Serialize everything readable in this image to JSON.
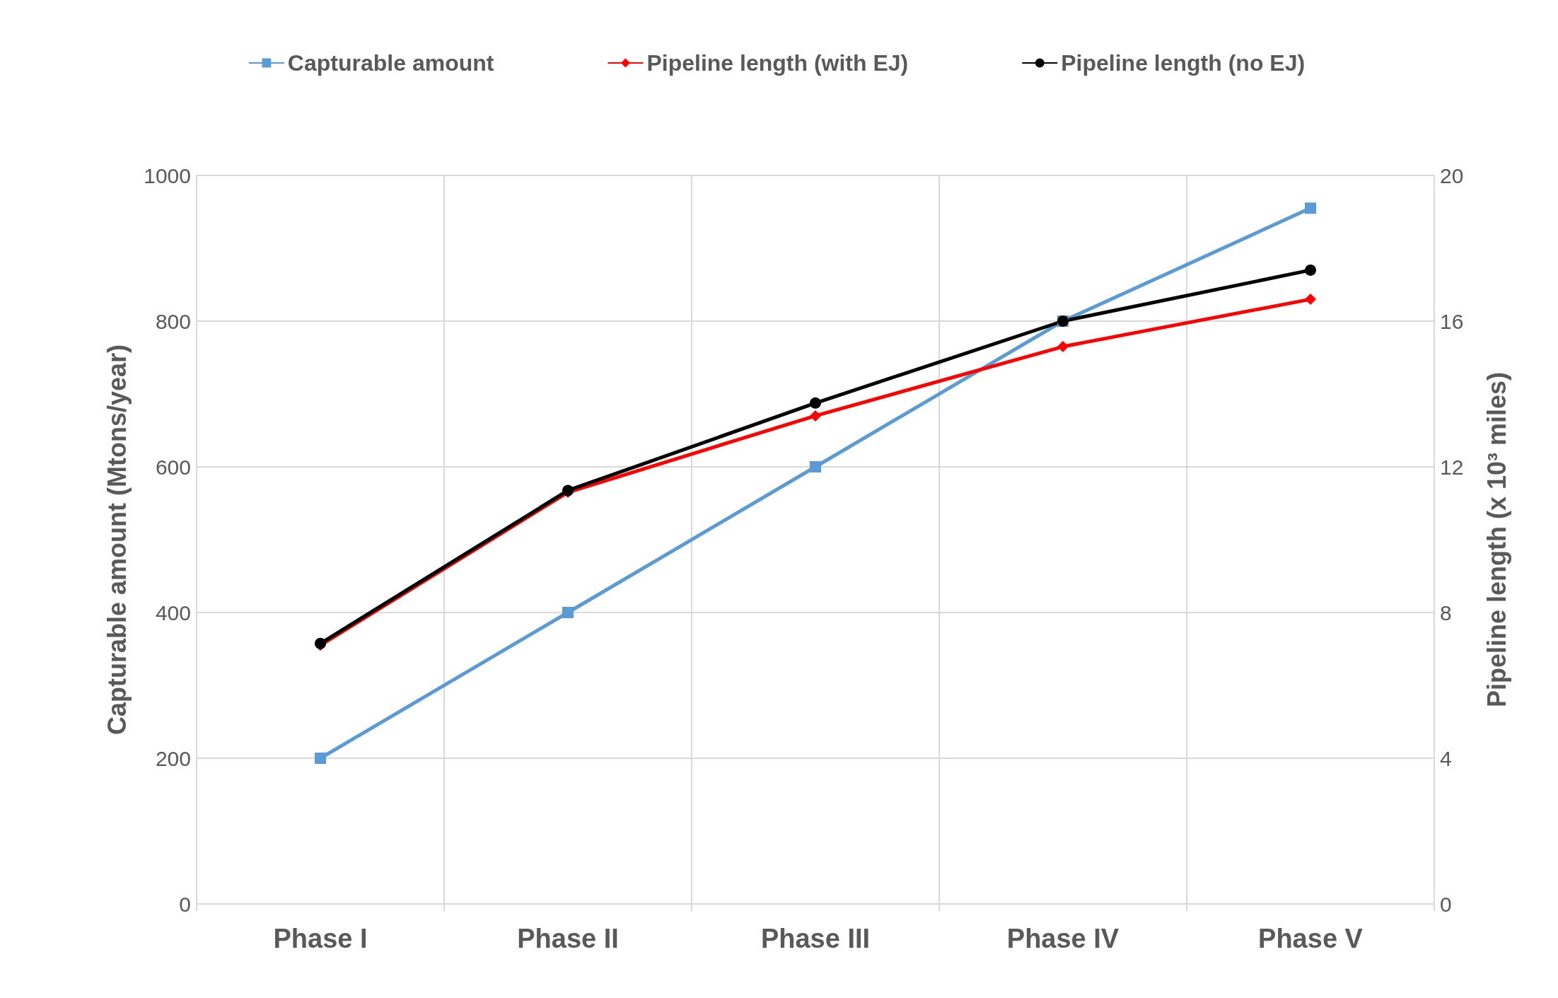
{
  "chart_data": {
    "type": "line",
    "ylabel": "Capturable amount (Mtons/year)",
    "y2label": "Pipeline length (x 10³ miles)",
    "categories": [
      "Phase I",
      "Phase II",
      "Phase III",
      "Phase IV",
      "Phase V"
    ],
    "series": [
      {
        "name": "Capturable amount",
        "color": "#5b9bd5",
        "marker": "square",
        "values": [
          200,
          400,
          600,
          800,
          955
        ]
      },
      {
        "name": "Pipeline length (with EJ)",
        "color": "#ff0000",
        "marker": "diamond",
        "axis": "y2",
        "values": [
          7.1,
          11.3,
          13.4,
          15.3,
          16.6
        ]
      },
      {
        "name": "Pipeline length (no EJ)",
        "color": "#000000",
        "marker": "circle",
        "axis": "y2",
        "values": [
          7.15,
          11.35,
          13.75,
          16.0,
          17.4
        ]
      }
    ],
    "ylim": [
      0,
      1000
    ],
    "yticks": [
      0,
      200,
      400,
      600,
      800,
      1000
    ],
    "y2lim": [
      0,
      20
    ],
    "y2ticks": [
      0,
      4,
      8,
      12,
      16,
      20
    ],
    "grid": true,
    "legend": "top",
    "line_style": "solid"
  }
}
